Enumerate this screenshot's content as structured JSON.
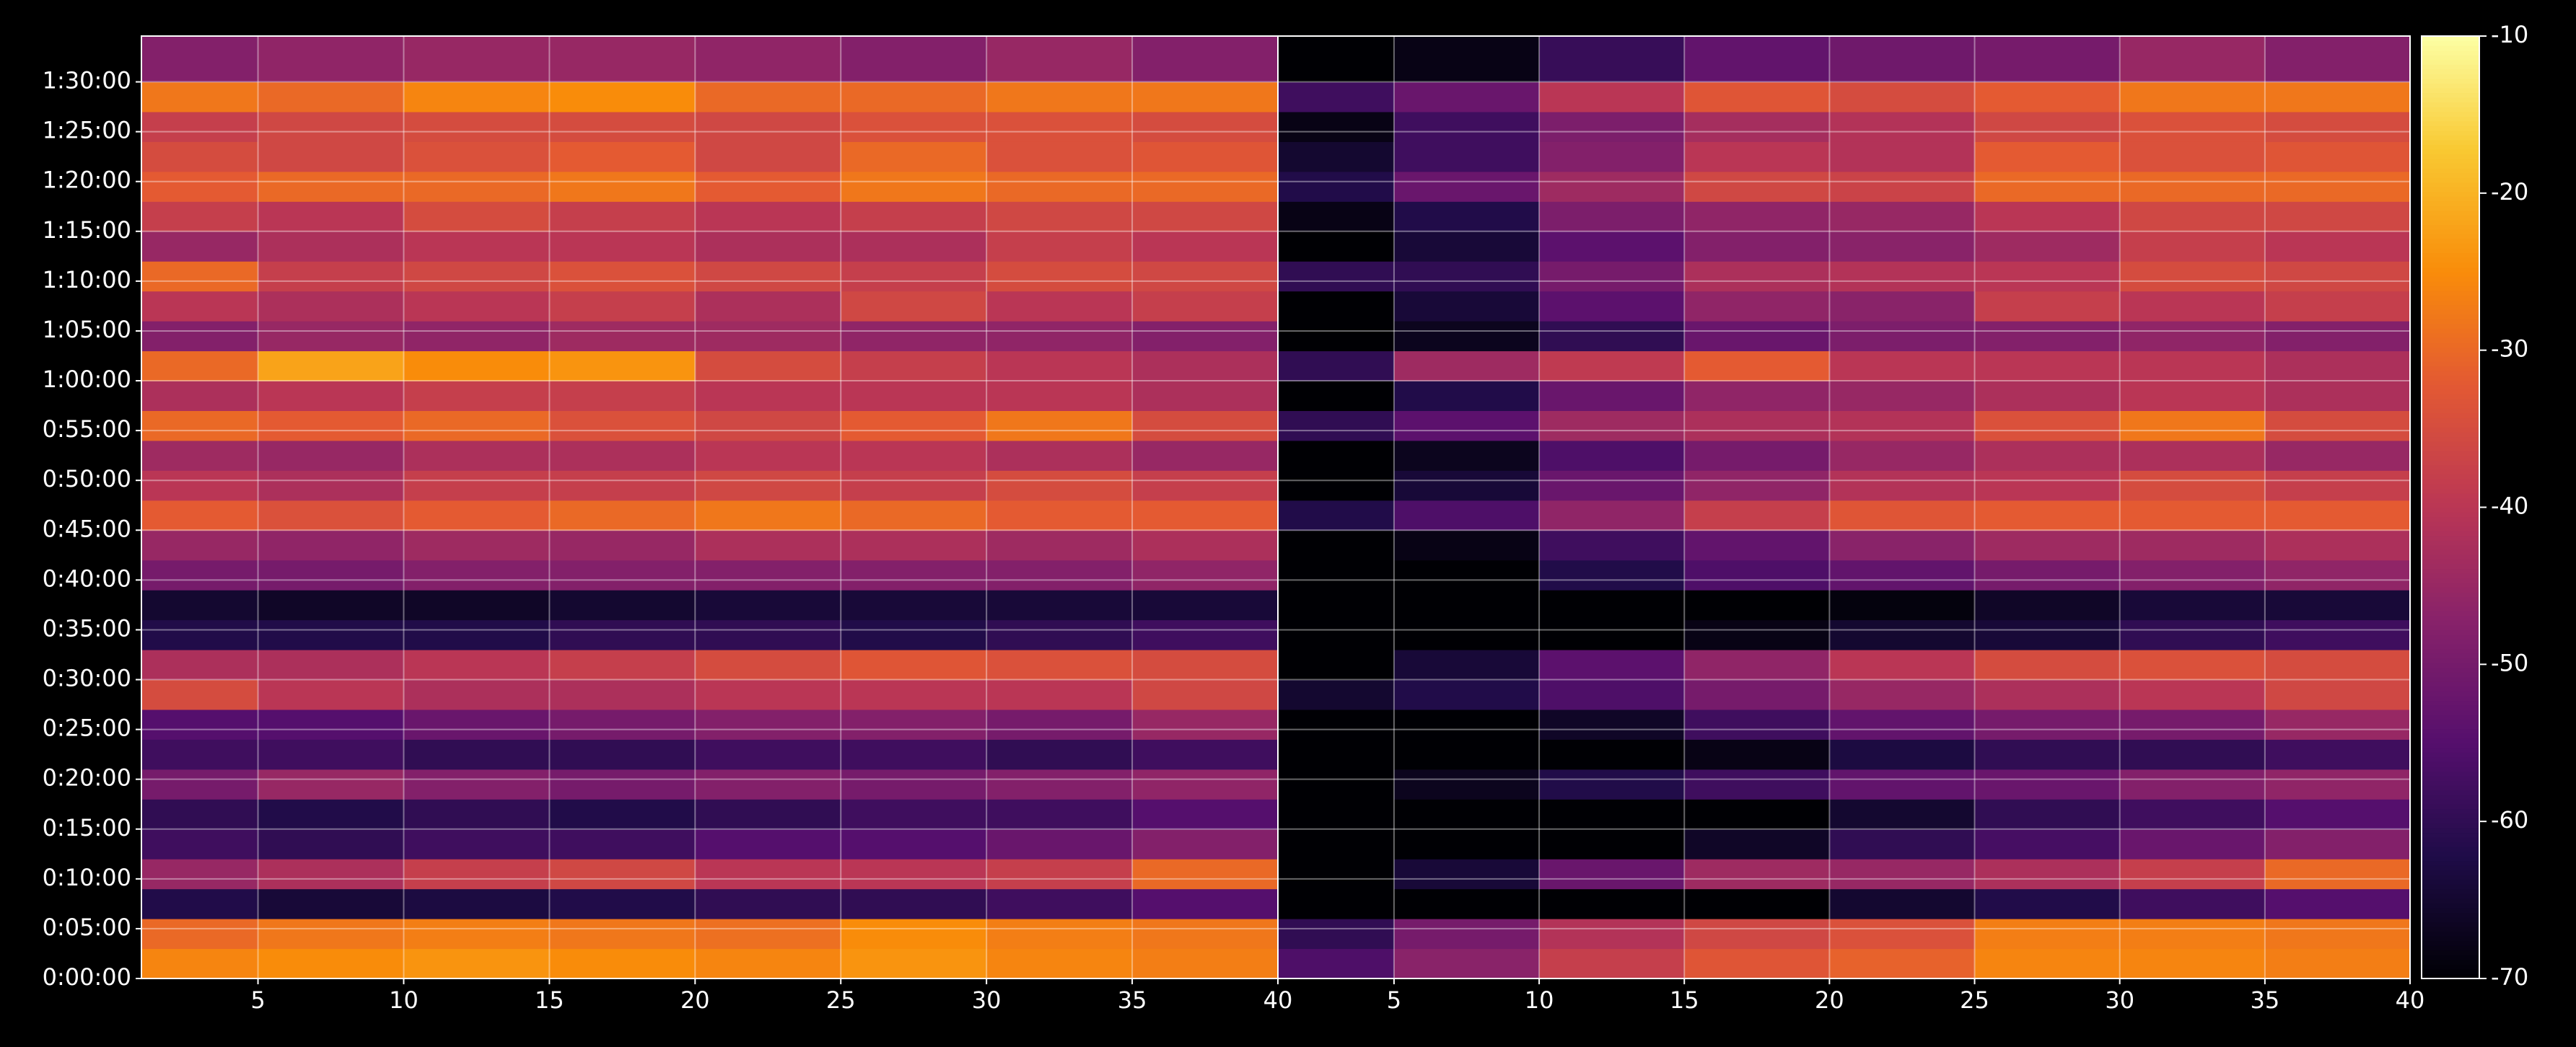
{
  "chart_data": {
    "type": "heatmap",
    "colormap": "inferno",
    "grid": true,
    "clim": [
      -70,
      -10
    ],
    "cticks": [
      -70,
      -60,
      -50,
      -40,
      -30,
      -20,
      -10
    ],
    "xlim": [
      1,
      40
    ],
    "xticks": [
      5,
      10,
      15,
      20,
      25,
      30,
      35,
      40
    ],
    "ylim": [
      0,
      5676
    ],
    "yticks": [
      {
        "value": 0,
        "label": "0:00:00"
      },
      {
        "value": 300,
        "label": "0:05:00"
      },
      {
        "value": 600,
        "label": "0:10:00"
      },
      {
        "value": 900,
        "label": "0:15:00"
      },
      {
        "value": 1200,
        "label": "0:20:00"
      },
      {
        "value": 1500,
        "label": "0:25:00"
      },
      {
        "value": 1800,
        "label": "0:30:00"
      },
      {
        "value": 2100,
        "label": "0:35:00"
      },
      {
        "value": 2400,
        "label": "0:40:00"
      },
      {
        "value": 2700,
        "label": "0:45:00"
      },
      {
        "value": 3000,
        "label": "0:50:00"
      },
      {
        "value": 3300,
        "label": "0:55:00"
      },
      {
        "value": 3600,
        "label": "1:00:00"
      },
      {
        "value": 3900,
        "label": "1:05:00"
      },
      {
        "value": 4200,
        "label": "1:10:00"
      },
      {
        "value": 4500,
        "label": "1:15:00"
      },
      {
        "value": 4800,
        "label": "1:20:00"
      },
      {
        "value": 5100,
        "label": "1:25:00"
      },
      {
        "value": 5400,
        "label": "1:30:00"
      }
    ],
    "x_edges": [
      1,
      5,
      10,
      15,
      20,
      25,
      30,
      35,
      40
    ],
    "y_edges": [
      0,
      180,
      360,
      540,
      720,
      900,
      1080,
      1260,
      1440,
      1620,
      1800,
      1980,
      2160,
      2340,
      2520,
      2700,
      2880,
      3060,
      3240,
      3420,
      3600,
      3780,
      3960,
      4140,
      4320,
      4500,
      4680,
      4860,
      5040,
      5220,
      5400,
      5676
    ],
    "panels": [
      {
        "z": [
          [
            -26,
            -25,
            -24,
            -25,
            -26,
            -24,
            -26,
            -27
          ],
          [
            -30,
            -28,
            -27,
            -28,
            -29,
            -25,
            -27,
            -28
          ],
          [
            -62,
            -64,
            -63,
            -62,
            -60,
            -60,
            -58,
            -55
          ],
          [
            -45,
            -42,
            -38,
            -36,
            -40,
            -40,
            -38,
            -30
          ],
          [
            -58,
            -60,
            -58,
            -58,
            -55,
            -55,
            -52,
            -48
          ],
          [
            -60,
            -62,
            -60,
            -62,
            -60,
            -58,
            -58,
            -55
          ],
          [
            -50,
            -45,
            -48,
            -50,
            -48,
            -50,
            -48,
            -46
          ],
          [
            -58,
            -58,
            -60,
            -60,
            -58,
            -58,
            -60,
            -58
          ],
          [
            -55,
            -55,
            -52,
            -50,
            -48,
            -48,
            -50,
            -45
          ],
          [
            -35,
            -40,
            -42,
            -42,
            -40,
            -40,
            -40,
            -36
          ],
          [
            -42,
            -42,
            -40,
            -38,
            -35,
            -33,
            -34,
            -35
          ],
          [
            -62,
            -62,
            -62,
            -60,
            -60,
            -62,
            -60,
            -58
          ],
          [
            -65,
            -66,
            -66,
            -65,
            -64,
            -64,
            -64,
            -64
          ],
          [
            -50,
            -50,
            -48,
            -48,
            -48,
            -48,
            -48,
            -46
          ],
          [
            -45,
            -46,
            -44,
            -45,
            -42,
            -42,
            -44,
            -42
          ],
          [
            -32,
            -34,
            -32,
            -30,
            -28,
            -30,
            -32,
            -32
          ],
          [
            -40,
            -42,
            -38,
            -38,
            -36,
            -38,
            -35,
            -38
          ],
          [
            -44,
            -45,
            -42,
            -42,
            -40,
            -40,
            -42,
            -45
          ],
          [
            -30,
            -32,
            -30,
            -34,
            -36,
            -32,
            -28,
            -35
          ],
          [
            -42,
            -40,
            -38,
            -38,
            -40,
            -40,
            -40,
            -42
          ],
          [
            -30,
            -22,
            -25,
            -24,
            -35,
            -38,
            -40,
            -42
          ],
          [
            -48,
            -45,
            -46,
            -44,
            -44,
            -46,
            -46,
            -48
          ],
          [
            -40,
            -42,
            -40,
            -38,
            -42,
            -36,
            -40,
            -38
          ],
          [
            -30,
            -38,
            -36,
            -34,
            -36,
            -38,
            -35,
            -36
          ],
          [
            -45,
            -42,
            -40,
            -40,
            -42,
            -42,
            -38,
            -40
          ],
          [
            -38,
            -40,
            -35,
            -38,
            -40,
            -38,
            -36,
            -36
          ],
          [
            -32,
            -30,
            -30,
            -28,
            -32,
            -28,
            -30,
            -30
          ],
          [
            -35,
            -36,
            -34,
            -32,
            -36,
            -30,
            -34,
            -33
          ],
          [
            -38,
            -36,
            -35,
            -35,
            -36,
            -34,
            -34,
            -35
          ],
          [
            -28,
            -30,
            -26,
            -25,
            -30,
            -30,
            -28,
            -28
          ],
          [
            -48,
            -46,
            -45,
            -45,
            -46,
            -48,
            -45,
            -48
          ]
        ]
      },
      {
        "z": [
          [
            -56,
            -47,
            -38,
            -33,
            -31,
            -26,
            -26,
            -27
          ],
          [
            -60,
            -50,
            -41,
            -36,
            -34,
            -27,
            -27,
            -28
          ],
          [
            -70,
            -70,
            -70,
            -70,
            -65,
            -62,
            -58,
            -55
          ],
          [
            -70,
            -64,
            -52,
            -44,
            -45,
            -42,
            -38,
            -30
          ],
          [
            -70,
            -70,
            -70,
            -66,
            -60,
            -57,
            -52,
            -48
          ],
          [
            -70,
            -70,
            -70,
            -70,
            -65,
            -60,
            -58,
            -55
          ],
          [
            -70,
            -67,
            -62,
            -58,
            -53,
            -52,
            -48,
            -46
          ],
          [
            -70,
            -70,
            -70,
            -68,
            -63,
            -60,
            -60,
            -58
          ],
          [
            -70,
            -70,
            -66,
            -58,
            -53,
            -50,
            -50,
            -45
          ],
          [
            -65,
            -62,
            -56,
            -50,
            -45,
            -42,
            -40,
            -36
          ],
          [
            -70,
            -64,
            -54,
            -46,
            -40,
            -35,
            -34,
            -35
          ],
          [
            -70,
            -70,
            -70,
            -68,
            -65,
            -64,
            -60,
            -58
          ],
          [
            -70,
            -70,
            -70,
            -70,
            -69,
            -66,
            -64,
            -64
          ],
          [
            -70,
            -70,
            -62,
            -56,
            -53,
            -50,
            -48,
            -46
          ],
          [
            -70,
            -68,
            -58,
            -53,
            -47,
            -44,
            -44,
            -42
          ],
          [
            -62,
            -56,
            -46,
            -38,
            -33,
            -32,
            -32,
            -32
          ],
          [
            -70,
            -64,
            -52,
            -46,
            -41,
            -40,
            -35,
            -38
          ],
          [
            -70,
            -67,
            -56,
            -50,
            -45,
            -42,
            -42,
            -45
          ],
          [
            -60,
            -54,
            -44,
            -42,
            -41,
            -34,
            -28,
            -35
          ],
          [
            -70,
            -62,
            -52,
            -46,
            -45,
            -42,
            -40,
            -42
          ],
          [
            -60,
            -44,
            -39,
            -32,
            -40,
            -40,
            -40,
            -42
          ],
          [
            -70,
            -67,
            -60,
            -52,
            -49,
            -48,
            -46,
            -48
          ],
          [
            -70,
            -64,
            -54,
            -46,
            -47,
            -38,
            -40,
            -38
          ],
          [
            -60,
            -60,
            -50,
            -42,
            -41,
            -40,
            -35,
            -36
          ],
          [
            -70,
            -64,
            -54,
            -48,
            -47,
            -44,
            -38,
            -40
          ],
          [
            -68,
            -62,
            -49,
            -46,
            -45,
            -40,
            -36,
            -36
          ],
          [
            -62,
            -52,
            -44,
            -36,
            -37,
            -30,
            -30,
            -30
          ],
          [
            -65,
            -58,
            -48,
            -40,
            -41,
            -32,
            -34,
            -33
          ],
          [
            -68,
            -58,
            -49,
            -43,
            -41,
            -36,
            -34,
            -35
          ],
          [
            -58,
            -52,
            -40,
            -33,
            -35,
            -32,
            -28,
            -28
          ],
          [
            -70,
            -68,
            -59,
            -53,
            -51,
            -50,
            -45,
            -48
          ]
        ]
      }
    ]
  }
}
